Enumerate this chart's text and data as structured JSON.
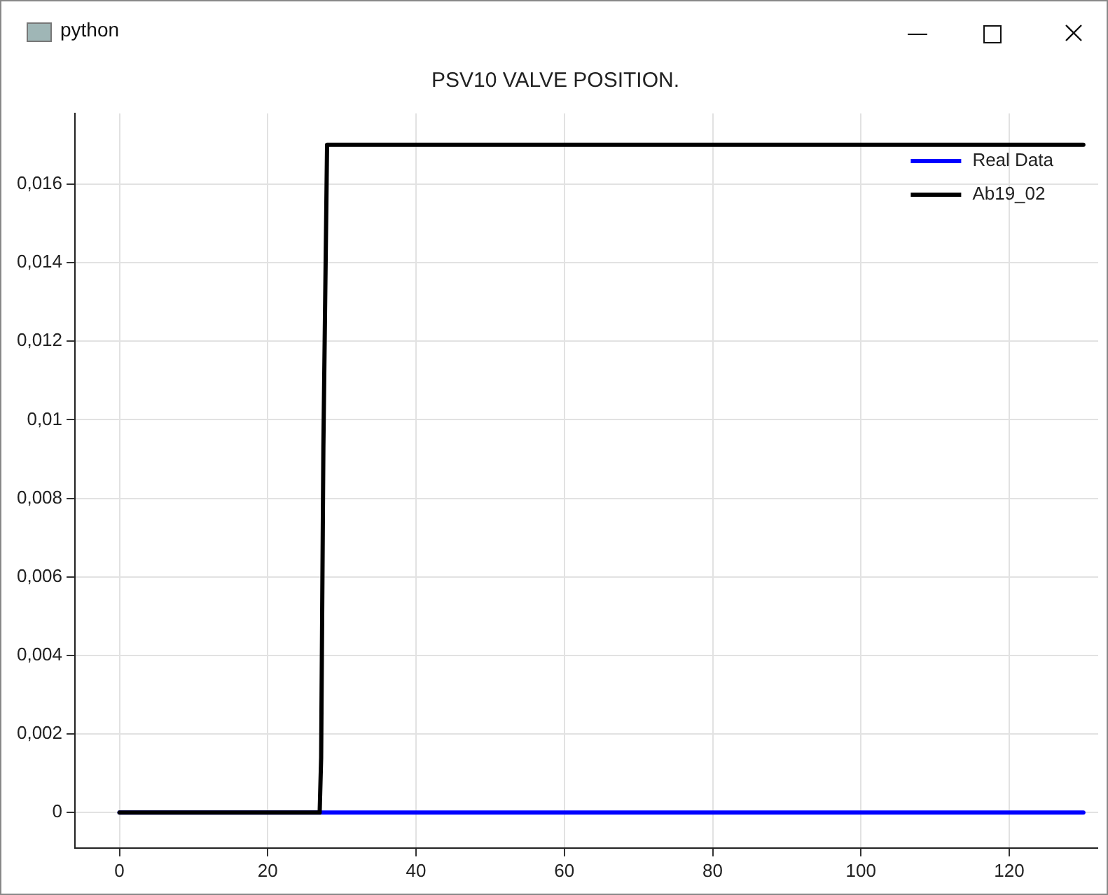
{
  "chart_data": {
    "type": "line",
    "title": "PSV10 VALVE POSITION.",
    "annotations": [
      "python"
    ],
    "series": [
      {
        "name": "Real Data",
        "color": "#0000ff",
        "x": [
          0,
          130
        ],
        "values": [
          0,
          0
        ]
      },
      {
        "name": "Ab19_02",
        "color": "#000000",
        "x": [
          0,
          27,
          27.2,
          27.5,
          28,
          130
        ],
        "values": [
          0,
          0,
          0.0014,
          0.0093,
          0.017,
          0.017
        ]
      }
    ],
    "xlim": [
      -6,
      132
    ],
    "xticks": [
      0,
      20,
      40,
      60,
      80,
      100,
      120
    ],
    "ylim": [
      -0.0009,
      0.0178
    ],
    "yticks": [
      {
        "value": 0,
        "label": "0"
      },
      {
        "value": 0.002,
        "label": "0,002"
      },
      {
        "value": 0.004,
        "label": "0,004"
      },
      {
        "value": 0.006,
        "label": "0,006"
      },
      {
        "value": 0.008,
        "label": "0,008"
      },
      {
        "value": 0.01,
        "label": "0,01"
      },
      {
        "value": 0.012,
        "label": "0,012"
      },
      {
        "value": 0.014,
        "label": "0,014"
      },
      {
        "value": 0.016,
        "label": "0,016"
      }
    ],
    "grid": true,
    "legend": "top right",
    "marker": "none",
    "line_style": "solid"
  }
}
